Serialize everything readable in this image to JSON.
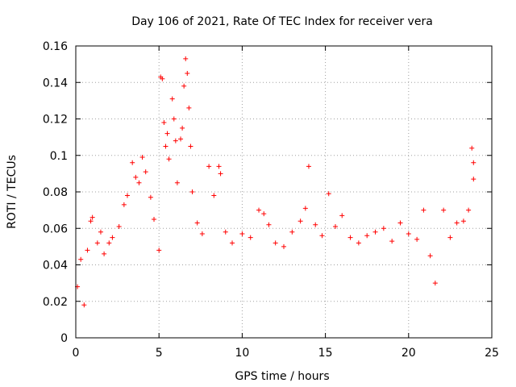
{
  "chart_data": {
    "type": "scatter",
    "title": "Day 106 of 2021, Rate Of TEC Index for receiver vera",
    "xlabel": "GPS time / hours",
    "ylabel": "ROTI / TECUs",
    "xlim": [
      0,
      25
    ],
    "ylim": [
      0,
      0.16
    ],
    "xticks": [
      "0",
      "5",
      "10",
      "15",
      "20",
      "25"
    ],
    "yticks": [
      "0",
      "0.02",
      "0.04",
      "0.06",
      "0.08",
      "0.1",
      "0.12",
      "0.14",
      "0.16"
    ],
    "grid": true,
    "marker": "+",
    "color": "#ff0000",
    "series": [
      {
        "values": [
          [
            0.1,
            0.028
          ],
          [
            0.3,
            0.043
          ],
          [
            0.5,
            0.018
          ],
          [
            0.7,
            0.048
          ],
          [
            0.9,
            0.064
          ],
          [
            1.0,
            0.066
          ],
          [
            1.3,
            0.052
          ],
          [
            1.5,
            0.058
          ],
          [
            1.7,
            0.046
          ],
          [
            2.0,
            0.052
          ],
          [
            2.2,
            0.055
          ],
          [
            2.6,
            0.061
          ],
          [
            2.9,
            0.073
          ],
          [
            3.1,
            0.078
          ],
          [
            3.4,
            0.096
          ],
          [
            3.6,
            0.088
          ],
          [
            3.8,
            0.085
          ],
          [
            4.0,
            0.099
          ],
          [
            4.2,
            0.091
          ],
          [
            4.5,
            0.077
          ],
          [
            4.7,
            0.065
          ],
          [
            5.0,
            0.048
          ],
          [
            5.1,
            0.143
          ],
          [
            5.2,
            0.142
          ],
          [
            5.3,
            0.118
          ],
          [
            5.4,
            0.105
          ],
          [
            5.5,
            0.112
          ],
          [
            5.6,
            0.098
          ],
          [
            5.8,
            0.131
          ],
          [
            5.9,
            0.12
          ],
          [
            6.0,
            0.108
          ],
          [
            6.1,
            0.085
          ],
          [
            6.3,
            0.109
          ],
          [
            6.4,
            0.115
          ],
          [
            6.5,
            0.138
          ],
          [
            6.6,
            0.153
          ],
          [
            6.7,
            0.145
          ],
          [
            6.8,
            0.126
          ],
          [
            6.9,
            0.105
          ],
          [
            7.0,
            0.08
          ],
          [
            7.3,
            0.063
          ],
          [
            7.6,
            0.057
          ],
          [
            8.0,
            0.094
          ],
          [
            8.3,
            0.078
          ],
          [
            8.6,
            0.094
          ],
          [
            8.7,
            0.09
          ],
          [
            9.0,
            0.058
          ],
          [
            9.4,
            0.052
          ],
          [
            10.0,
            0.057
          ],
          [
            10.5,
            0.055
          ],
          [
            11.0,
            0.07
          ],
          [
            11.3,
            0.068
          ],
          [
            11.6,
            0.062
          ],
          [
            12.0,
            0.052
          ],
          [
            12.5,
            0.05
          ],
          [
            13.0,
            0.058
          ],
          [
            13.5,
            0.064
          ],
          [
            13.8,
            0.071
          ],
          [
            14.0,
            0.094
          ],
          [
            14.4,
            0.062
          ],
          [
            14.8,
            0.056
          ],
          [
            15.2,
            0.079
          ],
          [
            15.6,
            0.061
          ],
          [
            16.0,
            0.067
          ],
          [
            16.5,
            0.055
          ],
          [
            17.0,
            0.052
          ],
          [
            17.5,
            0.056
          ],
          [
            18.0,
            0.058
          ],
          [
            18.5,
            0.06
          ],
          [
            19.0,
            0.053
          ],
          [
            19.5,
            0.063
          ],
          [
            20.0,
            0.057
          ],
          [
            20.5,
            0.054
          ],
          [
            20.9,
            0.07
          ],
          [
            21.3,
            0.045
          ],
          [
            21.6,
            0.03
          ],
          [
            22.1,
            0.07
          ],
          [
            22.5,
            0.055
          ],
          [
            22.9,
            0.063
          ],
          [
            23.3,
            0.064
          ],
          [
            23.6,
            0.07
          ],
          [
            23.8,
            0.104
          ],
          [
            23.9,
            0.096
          ],
          [
            23.9,
            0.087
          ]
        ]
      }
    ]
  }
}
